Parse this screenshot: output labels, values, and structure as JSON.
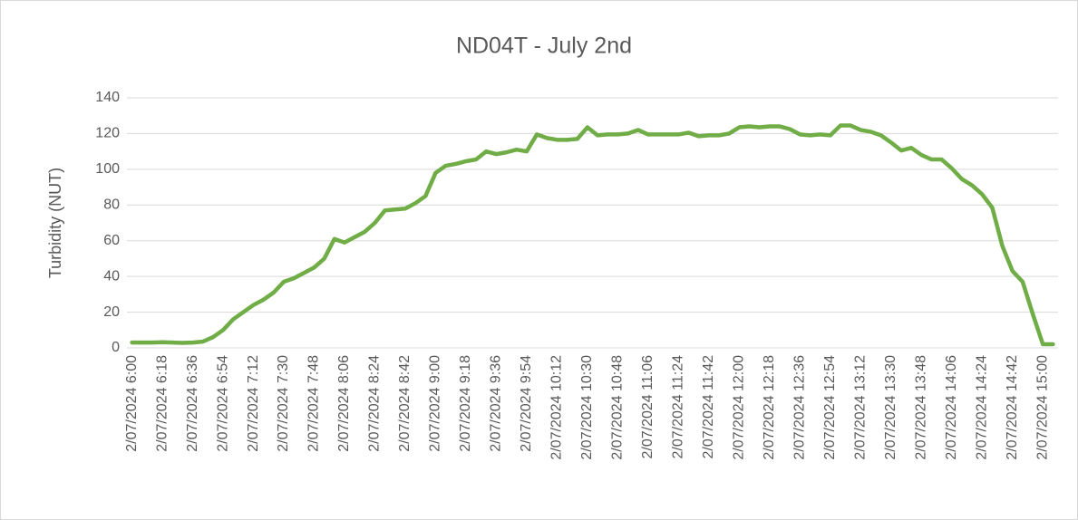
{
  "chart_data": {
    "type": "line",
    "title": "ND04T - July 2nd",
    "y_label": "Turbidity (NUT)",
    "categories": [
      "2/07/2024 6:00",
      null,
      null,
      "2/07/2024 6:18",
      null,
      null,
      "2/07/2024 6:36",
      null,
      null,
      "2/07/2024 6:54",
      null,
      null,
      "2/07/2024 7:12",
      null,
      null,
      "2/07/2024 7:30",
      null,
      null,
      "2/07/2024 7:48",
      null,
      null,
      "2/07/2024 8:06",
      null,
      null,
      "2/07/2024 8:24",
      null,
      null,
      "2/07/2024 8:42",
      null,
      null,
      "2/07/2024 9:00",
      null,
      null,
      "2/07/2024 9:18",
      null,
      null,
      "2/07/2024 9:36",
      null,
      null,
      "2/07/2024 9:54",
      null,
      null,
      "2/07/2024 10:12",
      null,
      null,
      "2/07/2024 10:30",
      null,
      null,
      "2/07/2024 10:48",
      null,
      null,
      "2/07/2024 11:06",
      null,
      null,
      "2/07/2024 11:24",
      null,
      null,
      "2/07/2024 11:42",
      null,
      null,
      "2/07/2024 12:00",
      null,
      null,
      "2/07/2024 12:18",
      null,
      null,
      "2/07/2024 12:36",
      null,
      null,
      "2/07/2024 12:54",
      null,
      null,
      "2/07/2024 13:12",
      null,
      null,
      "2/07/2024 13:30",
      null,
      null,
      "2/07/2024 13:48",
      null,
      null,
      "2/07/2024 14:06",
      null,
      null,
      "2/07/2024 14:24",
      null,
      null,
      "2/07/2024 14:42",
      null,
      null,
      "2/07/2024 15:00",
      null
    ],
    "values": [
      3,
      3,
      3,
      3.2,
      3,
      2.8,
      3,
      3.5,
      6,
      10,
      16,
      20,
      24,
      27,
      31,
      37,
      39,
      42,
      45,
      50,
      61,
      59,
      62,
      65,
      70,
      77,
      77.5,
      78,
      81,
      85,
      98,
      102,
      103,
      104.5,
      105.5,
      110,
      108.5,
      109.5,
      111,
      110,
      119.5,
      117.5,
      116.5,
      116.5,
      117,
      123.5,
      119,
      119.5,
      119.5,
      120,
      122,
      119.5,
      119.5,
      119.5,
      119.5,
      120.5,
      118.5,
      119,
      119,
      120,
      123.5,
      124,
      123.5,
      124,
      124,
      122.5,
      119.5,
      119,
      119.5,
      119,
      124.5,
      124.5,
      122,
      121,
      119,
      115,
      110.5,
      112,
      108,
      105.5,
      105.5,
      100.5,
      94.5,
      91,
      86,
      78.5,
      57,
      43,
      37,
      19,
      2,
      2
    ],
    "color": "#70ad47",
    "ylim": [
      0,
      140
    ],
    "yticks": [
      0,
      20,
      40,
      60,
      80,
      100,
      120,
      140
    ],
    "grid": true
  }
}
